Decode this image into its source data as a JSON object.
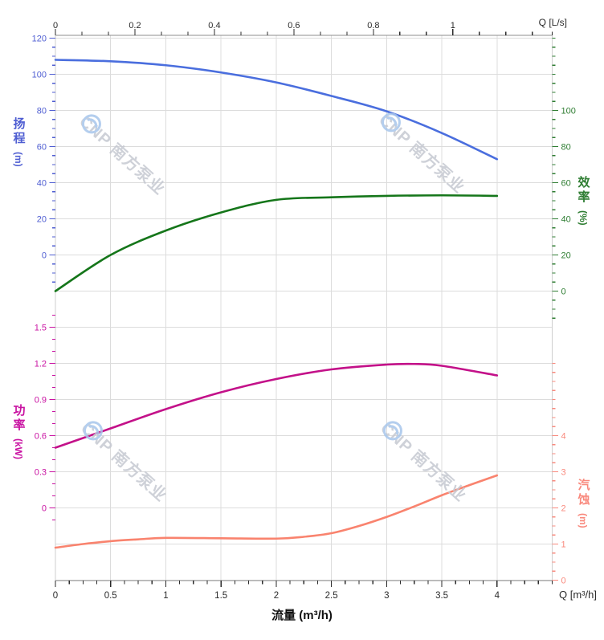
{
  "watermark": {
    "text": "CNP 南方泵业",
    "text_color": "#c6c9d2",
    "logo_color": "#a7c6ec"
  },
  "chart_data": {
    "type": "line",
    "title": "",
    "x_axis": {
      "label_bottom": "流量 (m³/h)",
      "unit_top": "Q [L/s]",
      "unit_bottom": "Q [m³/h]",
      "bottom_ticks": [
        0,
        0.5,
        1,
        1.5,
        2,
        2.5,
        3,
        3.5,
        4
      ],
      "top_ticks": [
        0,
        0.2,
        0.4,
        0.6,
        0.8,
        1
      ],
      "range_m3h": [
        0,
        4.5
      ],
      "range_ls": [
        0,
        1.25
      ],
      "grid": true
    },
    "y_axes": [
      {
        "id": "head",
        "name": "扬程",
        "unit": "(m)",
        "side": "left",
        "color": "#4f5ed2",
        "tick_values": [
          120,
          100,
          80,
          60,
          40,
          20,
          0
        ],
        "range_shown": [
          0,
          120
        ]
      },
      {
        "id": "efficiency",
        "name": "效率",
        "unit": "(%)",
        "side": "right",
        "color": "#2e7d32",
        "tick_values": [
          100,
          80,
          60,
          40,
          20,
          0
        ],
        "range_shown": [
          0,
          100
        ]
      },
      {
        "id": "power",
        "name": "功率",
        "unit": "(kW)",
        "side": "left",
        "color": "#c913a2",
        "tick_values": [
          1.5,
          1.2,
          0.9,
          0.6,
          0.3,
          0
        ],
        "range_shown": [
          0,
          1.5
        ]
      },
      {
        "id": "npsh",
        "name": "汽蚀",
        "unit": "(m)",
        "side": "right",
        "color": "#f9897d",
        "tick_values": [
          4,
          3,
          2,
          1,
          0
        ],
        "range_shown": [
          0,
          4
        ]
      }
    ],
    "series": [
      {
        "id": "head",
        "name": "扬程",
        "axis": "head",
        "color": "#4a6ede",
        "x": [
          0,
          0.5,
          1,
          1.5,
          2,
          2.5,
          3,
          3.5,
          4
        ],
        "values": [
          108,
          107.2,
          105,
          101,
          95.5,
          88,
          79.5,
          67.5,
          53
        ]
      },
      {
        "id": "efficiency",
        "name": "效率",
        "axis": "efficiency",
        "color": "#15761a",
        "x": [
          0,
          0.5,
          1,
          1.5,
          2,
          2.5,
          3,
          3.5,
          4
        ],
        "values": [
          0,
          20,
          33.5,
          43.5,
          50.5,
          51.9,
          52.7,
          53,
          52.7
        ]
      },
      {
        "id": "power",
        "name": "功率",
        "axis": "power",
        "color": "#c31189",
        "x": [
          0,
          0.5,
          1,
          1.5,
          2,
          2.5,
          3,
          3.25,
          3.5,
          4
        ],
        "values": [
          0.5,
          0.66,
          0.82,
          0.96,
          1.07,
          1.15,
          1.19,
          1.195,
          1.18,
          1.1
        ]
      },
      {
        "id": "npsh",
        "name": "汽蚀",
        "axis": "npsh",
        "color": "#f9836e",
        "x": [
          0,
          0.25,
          0.5,
          0.75,
          1,
          1.5,
          2,
          2.25,
          2.5,
          2.75,
          3,
          3.25,
          3.5,
          3.75,
          4
        ],
        "values": [
          0.9,
          1.0,
          1.08,
          1.13,
          1.17,
          1.16,
          1.15,
          1.2,
          1.3,
          1.5,
          1.75,
          2.04,
          2.35,
          2.63,
          2.9
        ]
      }
    ],
    "style": {
      "grid_color": "#dcdcdc",
      "spine_color": "#8c8c8c",
      "side_spine_color": "#cfcfcf",
      "black_tick_color": "#2b2b2b",
      "grid": true,
      "legend": "none"
    }
  }
}
